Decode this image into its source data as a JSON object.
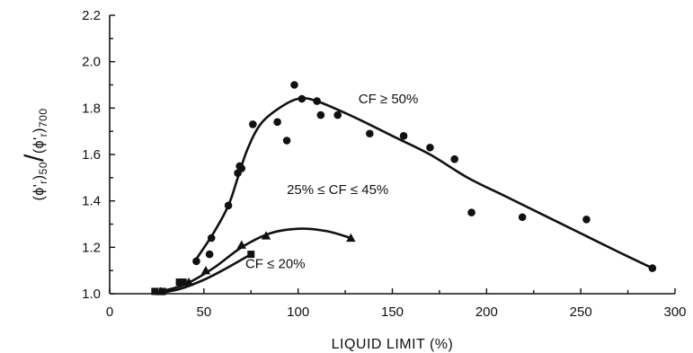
{
  "chart_data": {
    "type": "scatter",
    "xlabel": "LIQUID LIMIT (%)",
    "ylabel_parts": [
      "(ϕ'",
      "r",
      ")",
      "50",
      "/",
      "(ϕ'",
      "r",
      ")",
      "700"
    ],
    "xlim": [
      0,
      300
    ],
    "ylim": [
      1.0,
      2.2
    ],
    "x_ticks": [
      "0",
      "50",
      "100",
      "150",
      "200",
      "250",
      "300"
    ],
    "y_ticks": [
      "1.0",
      "1.2",
      "1.4",
      "1.6",
      "1.8",
      "2.0",
      "2.2"
    ],
    "series": [
      {
        "name": "CF ≥ 50%",
        "marker": "circle",
        "points": [
          [
            46,
            1.14
          ],
          [
            53,
            1.17
          ],
          [
            54,
            1.24
          ],
          [
            63,
            1.38
          ],
          [
            68,
            1.52
          ],
          [
            69,
            1.55
          ],
          [
            70,
            1.54
          ],
          [
            76,
            1.73
          ],
          [
            89,
            1.74
          ],
          [
            94,
            1.66
          ],
          [
            98,
            1.9
          ],
          [
            102,
            1.84
          ],
          [
            110,
            1.83
          ],
          [
            112,
            1.77
          ],
          [
            121,
            1.77
          ],
          [
            138,
            1.69
          ],
          [
            156,
            1.68
          ],
          [
            170,
            1.63
          ],
          [
            183,
            1.58
          ],
          [
            192,
            1.35
          ],
          [
            219,
            1.33
          ],
          [
            253,
            1.32
          ],
          [
            288,
            1.11
          ]
        ],
        "curve": [
          [
            46,
            1.15
          ],
          [
            55,
            1.26
          ],
          [
            63,
            1.38
          ],
          [
            68,
            1.5
          ],
          [
            73,
            1.62
          ],
          [
            80,
            1.73
          ],
          [
            90,
            1.8
          ],
          [
            100,
            1.84
          ],
          [
            110,
            1.83
          ],
          [
            130,
            1.76
          ],
          [
            150,
            1.68
          ],
          [
            170,
            1.6
          ],
          [
            190,
            1.5
          ],
          [
            210,
            1.42
          ],
          [
            230,
            1.34
          ],
          [
            250,
            1.26
          ],
          [
            270,
            1.18
          ],
          [
            288,
            1.11
          ]
        ]
      },
      {
        "name": "25% ≤ CF ≤ 45%",
        "marker": "triangle",
        "points": [
          [
            27,
            1.01
          ],
          [
            42,
            1.05
          ],
          [
            51,
            1.1
          ],
          [
            70,
            1.21
          ],
          [
            83,
            1.25
          ],
          [
            128,
            1.24
          ]
        ],
        "curve": [
          [
            27,
            1.01
          ],
          [
            40,
            1.04
          ],
          [
            55,
            1.11
          ],
          [
            70,
            1.2
          ],
          [
            85,
            1.26
          ],
          [
            100,
            1.28
          ],
          [
            115,
            1.27
          ],
          [
            128,
            1.24
          ]
        ]
      },
      {
        "name": "CF ≤ 20%",
        "marker": "square",
        "points": [
          [
            24,
            1.01
          ],
          [
            28,
            1.01
          ],
          [
            37,
            1.05
          ],
          [
            39,
            1.05
          ],
          [
            75,
            1.17
          ]
        ],
        "curve": [
          [
            24,
            1.0
          ],
          [
            37,
            1.02
          ],
          [
            50,
            1.06
          ],
          [
            62,
            1.11
          ],
          [
            75,
            1.17
          ]
        ]
      }
    ],
    "annotations": [
      {
        "text": "CF ≥ 50%",
        "x": 132,
        "y": 1.82
      },
      {
        "text": "25% ≤ CF ≤ 45%",
        "x": 94,
        "y": 1.43
      },
      {
        "text": "CF ≤ 20%",
        "x": 72,
        "y": 1.11
      }
    ]
  }
}
